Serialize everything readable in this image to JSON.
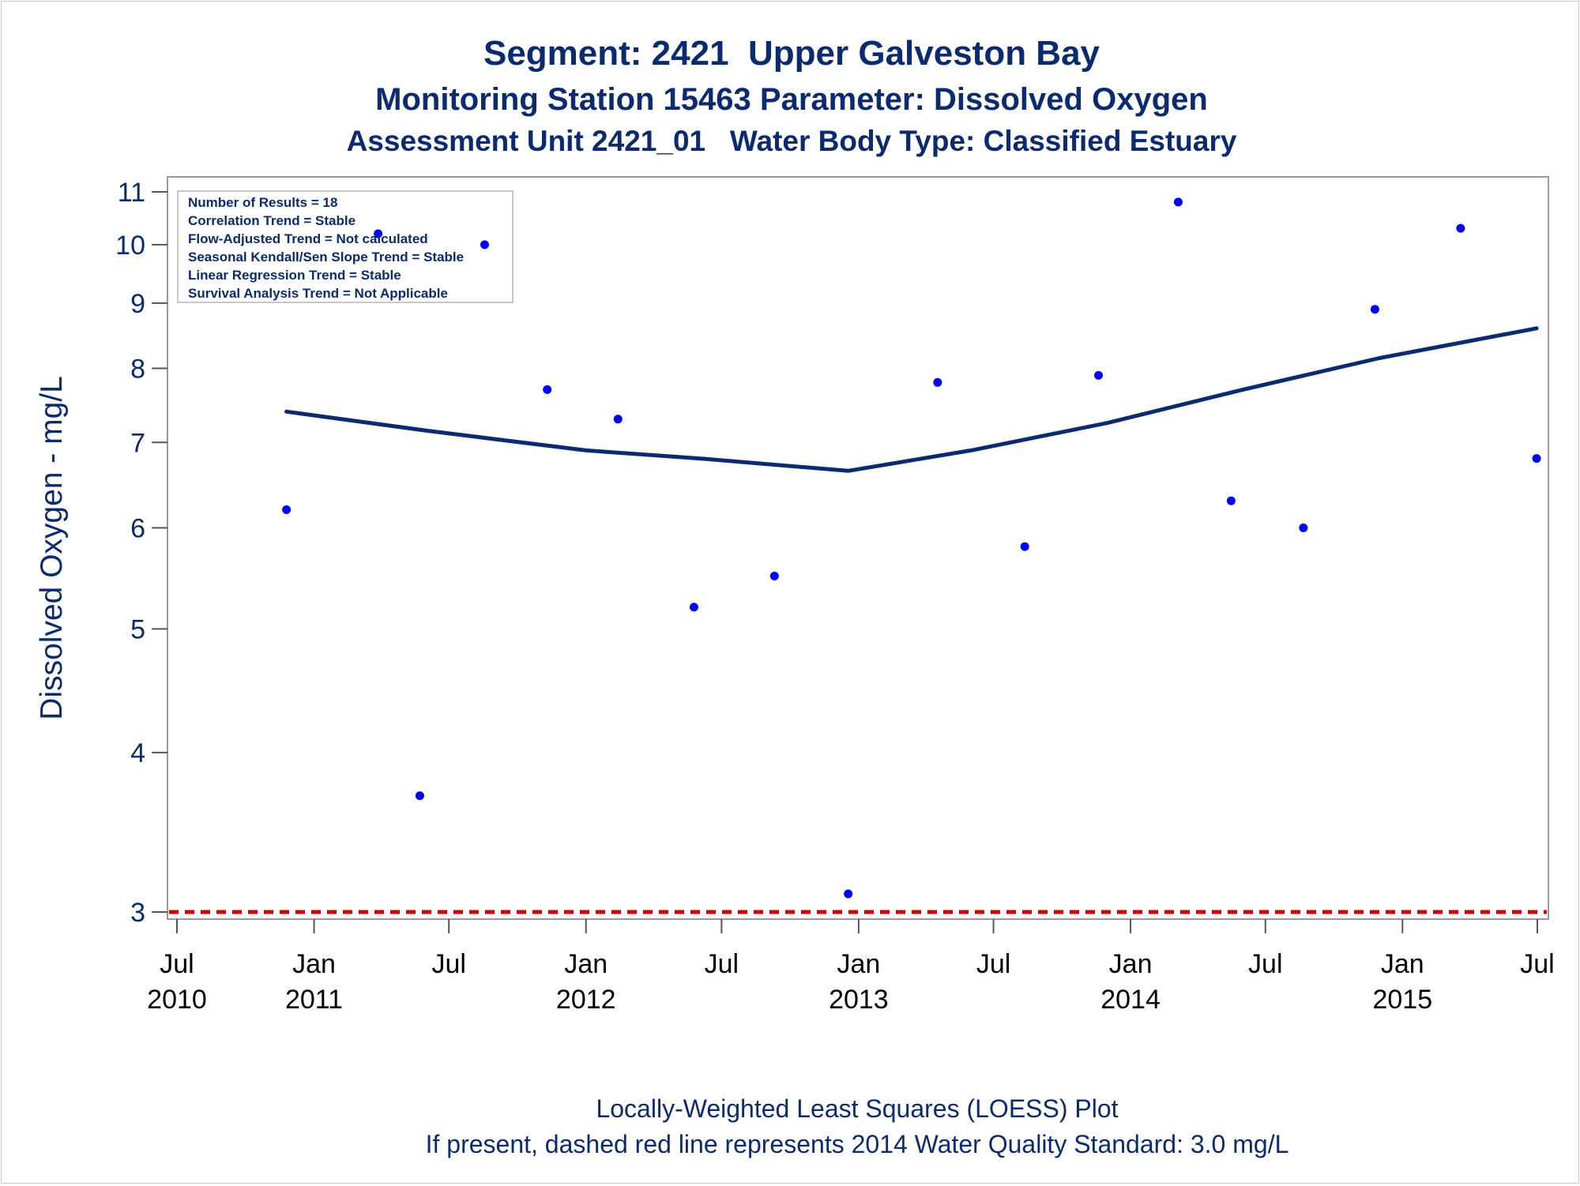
{
  "colors": {
    "text": "#0b2a6f",
    "loess_line": "#0b2a6f",
    "points": "#0000ff",
    "standard_line": "#cc0000",
    "frame": "#999999"
  },
  "titles": {
    "line1": "Segment: 2421  Upper Galveston Bay",
    "line2": "Monitoring Station 15463 Parameter: Dissolved Oxygen",
    "line3": "Assessment Unit 2421_01   Water Body Type: Classified Estuary"
  },
  "footnotes": {
    "line1": "Locally-Weighted Least Squares (LOESS) Plot",
    "line2": "If present, dashed red line represents 2014 Water Quality Standard: 3.0 mg/L"
  },
  "inset": {
    "lines": [
      "Number of Results = 18",
      "Correlation Trend = Stable",
      "Flow-Adjusted Trend = Not calculated",
      "Seasonal Kendall/Sen Slope Trend = Stable",
      "Linear Regression Trend = Stable",
      "Survival Analysis Trend = Not Applicable"
    ]
  },
  "chart_data": {
    "type": "scatter",
    "title": "Segment: 2421  Upper Galveston Bay",
    "ylabel": "Dissolved Oxygen - mg/L",
    "xlabel": "",
    "y_scale": "log",
    "ylim": [
      3,
      11
    ],
    "xlim": [
      "2010-07-01",
      "2015-07-01"
    ],
    "y_ticks": [
      3,
      4,
      5,
      6,
      7,
      8,
      9,
      10,
      11
    ],
    "x_ticks": [
      {
        "date": "2010-07-01",
        "label": "Jul",
        "year": "2010"
      },
      {
        "date": "2011-01-01",
        "label": "Jan",
        "year": "2011"
      },
      {
        "date": "2011-07-01",
        "label": "Jul",
        "year": ""
      },
      {
        "date": "2012-01-01",
        "label": "Jan",
        "year": "2012"
      },
      {
        "date": "2012-07-01",
        "label": "Jul",
        "year": ""
      },
      {
        "date": "2013-01-01",
        "label": "Jan",
        "year": "2013"
      },
      {
        "date": "2013-07-01",
        "label": "Jul",
        "year": ""
      },
      {
        "date": "2014-01-01",
        "label": "Jan",
        "year": "2014"
      },
      {
        "date": "2014-07-01",
        "label": "Jul",
        "year": ""
      },
      {
        "date": "2015-01-01",
        "label": "Jan",
        "year": "2015"
      },
      {
        "date": "2015-07-01",
        "label": "Jul",
        "year": ""
      }
    ],
    "grid": false,
    "series": [
      {
        "type": "scatter",
        "points": [
          {
            "x": "2010-11-25",
            "y": 6.2
          },
          {
            "x": "2011-03-28",
            "y": 10.2
          },
          {
            "x": "2011-05-23",
            "y": 3.7
          },
          {
            "x": "2011-08-18",
            "y": 10.0
          },
          {
            "x": "2011-11-10",
            "y": 7.7
          },
          {
            "x": "2012-02-13",
            "y": 7.3
          },
          {
            "x": "2012-05-25",
            "y": 5.2
          },
          {
            "x": "2012-09-10",
            "y": 5.5
          },
          {
            "x": "2012-12-18",
            "y": 3.1
          },
          {
            "x": "2013-04-17",
            "y": 7.8
          },
          {
            "x": "2013-08-12",
            "y": 5.8
          },
          {
            "x": "2013-11-19",
            "y": 7.9
          },
          {
            "x": "2014-03-06",
            "y": 10.8
          },
          {
            "x": "2014-05-16",
            "y": 6.3
          },
          {
            "x": "2014-08-21",
            "y": 6.0
          },
          {
            "x": "2014-11-25",
            "y": 8.9
          },
          {
            "x": "2015-03-20",
            "y": 10.3
          },
          {
            "x": "2015-06-30",
            "y": 6.8
          }
        ]
      },
      {
        "type": "line",
        "points": [
          {
            "x": "2010-11-25",
            "y": 7.4
          },
          {
            "x": "2011-06-01",
            "y": 7.15
          },
          {
            "x": "2012-01-01",
            "y": 6.9
          },
          {
            "x": "2012-06-01",
            "y": 6.8
          },
          {
            "x": "2012-12-18",
            "y": 6.65
          },
          {
            "x": "2013-06-01",
            "y": 6.9
          },
          {
            "x": "2013-12-01",
            "y": 7.25
          },
          {
            "x": "2014-06-01",
            "y": 7.7
          },
          {
            "x": "2014-12-01",
            "y": 8.15
          },
          {
            "x": "2015-06-30",
            "y": 8.6
          }
        ]
      },
      {
        "type": "reference",
        "y": 3.0
      }
    ]
  }
}
